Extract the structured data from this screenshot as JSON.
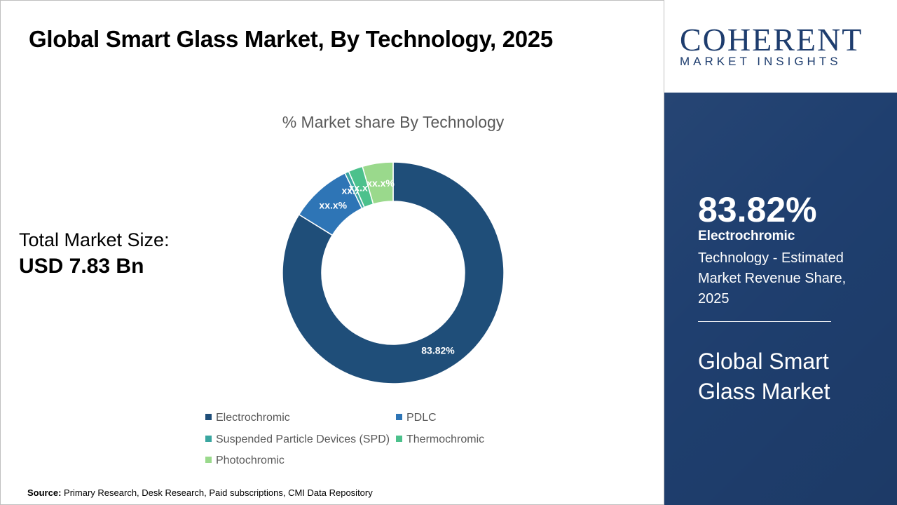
{
  "header": {
    "title": "Global Smart Glass Market, By Technology, 2025"
  },
  "market_size": {
    "label": "Total Market Size:",
    "value": "USD 7.83 Bn"
  },
  "chart_data": {
    "type": "pie",
    "title": "% Market share By Technology",
    "categories": [
      "Electrochromic",
      "PDLC",
      "Suspended Particle Devices (SPD)",
      "Thermochromic",
      "Photochromic"
    ],
    "values": [
      83.82,
      9.0,
      0.6,
      2.1,
      4.48
    ],
    "data_labels": [
      "83.82%",
      "xx.x%",
      "xx.x%",
      "xx.x%",
      "xx.x%"
    ],
    "colors": [
      "#1f4e79",
      "#2e75b6",
      "#3aa6a0",
      "#4cc18c",
      "#9ad98c"
    ],
    "legend_position": "bottom",
    "donut": true
  },
  "sidebar": {
    "logo_main": "COHERENT",
    "logo_sub": "MARKET INSIGHTS",
    "stat_value": "83.82%",
    "stat_label": "Electrochromic",
    "stat_desc": "Technology - Estimated Market Revenue Share, 2025",
    "market_name": "Global Smart Glass Market"
  },
  "footer": {
    "source_label": "Source:",
    "source_text": "Primary Research, Desk Research, Paid subscriptions, CMI Data Repository"
  }
}
